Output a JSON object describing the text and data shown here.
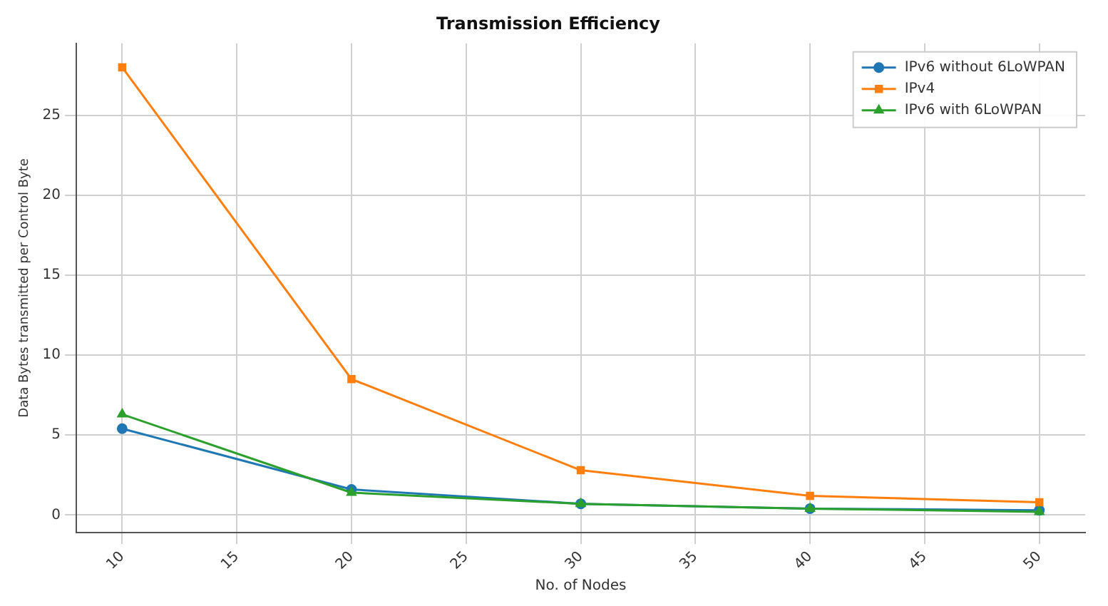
{
  "chart_data": {
    "type": "line",
    "title": "Transmission Efficiency",
    "xlabel": "No. of Nodes",
    "ylabel": "Data Bytes transmitted per Control Byte",
    "x": [
      10,
      20,
      30,
      40,
      50
    ],
    "series": [
      {
        "name": "IPv6 without 6LoWPAN",
        "color": "#1f77b4",
        "marker": "circle",
        "values": [
          5.4,
          1.6,
          0.7,
          0.4,
          0.3
        ]
      },
      {
        "name": "IPv4",
        "color": "#ff7f0e",
        "marker": "square",
        "values": [
          28,
          8.5,
          2.8,
          1.2,
          0.8
        ]
      },
      {
        "name": "IPv6 with 6LoWPAN",
        "color": "#2ca02c",
        "marker": "triangle",
        "values": [
          6.3,
          1.4,
          0.7,
          0.4,
          0.2
        ]
      }
    ],
    "xlim": [
      8,
      52
    ],
    "xticks": [
      10,
      15,
      20,
      25,
      30,
      35,
      40,
      45,
      50
    ],
    "ylim": [
      -1.1,
      29.5
    ],
    "yticks": [
      0,
      5,
      10,
      15,
      20,
      25
    ],
    "grid": true,
    "legend": "top right",
    "line_style": "solid"
  }
}
